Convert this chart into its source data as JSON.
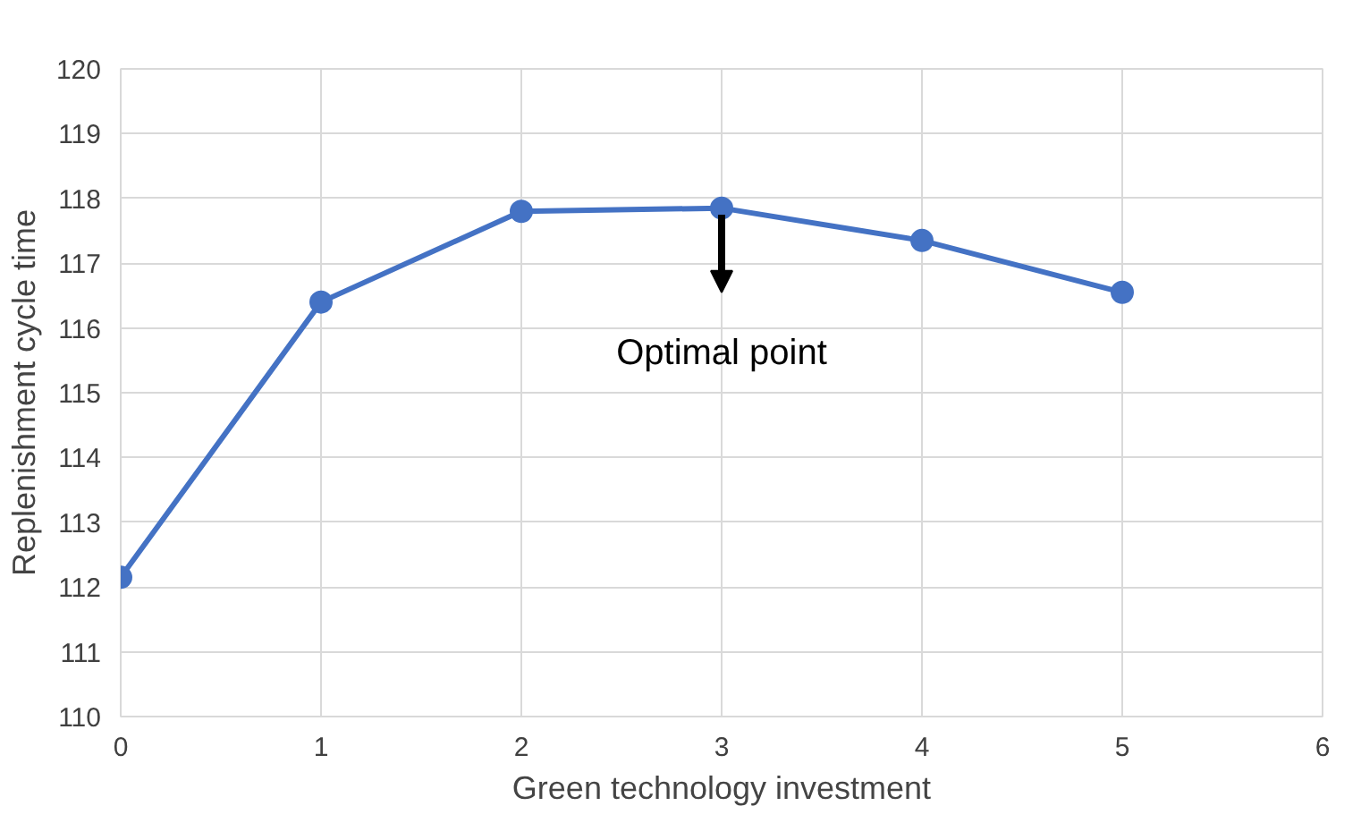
{
  "chart_data": {
    "type": "line",
    "xlabel": "Green technology investment",
    "ylabel": "Replenishment cycle time",
    "x": [
      0,
      1,
      2,
      3,
      4,
      5
    ],
    "series": [
      {
        "color": "#4472c4",
        "values": [
          112.15,
          116.4,
          117.8,
          117.85,
          117.35,
          116.55
        ]
      }
    ],
    "xlim": [
      0,
      6
    ],
    "xticks": [
      0,
      1,
      2,
      3,
      4,
      5,
      6
    ],
    "ylim": [
      110,
      120
    ],
    "yticks": [
      110,
      111,
      112,
      113,
      114,
      115,
      116,
      117,
      118,
      119,
      120
    ],
    "grid": true,
    "marker": "circle",
    "line_style": "solid",
    "annotations": [
      {
        "text": "Optimal point",
        "x": 3,
        "y": 117.85
      }
    ]
  }
}
